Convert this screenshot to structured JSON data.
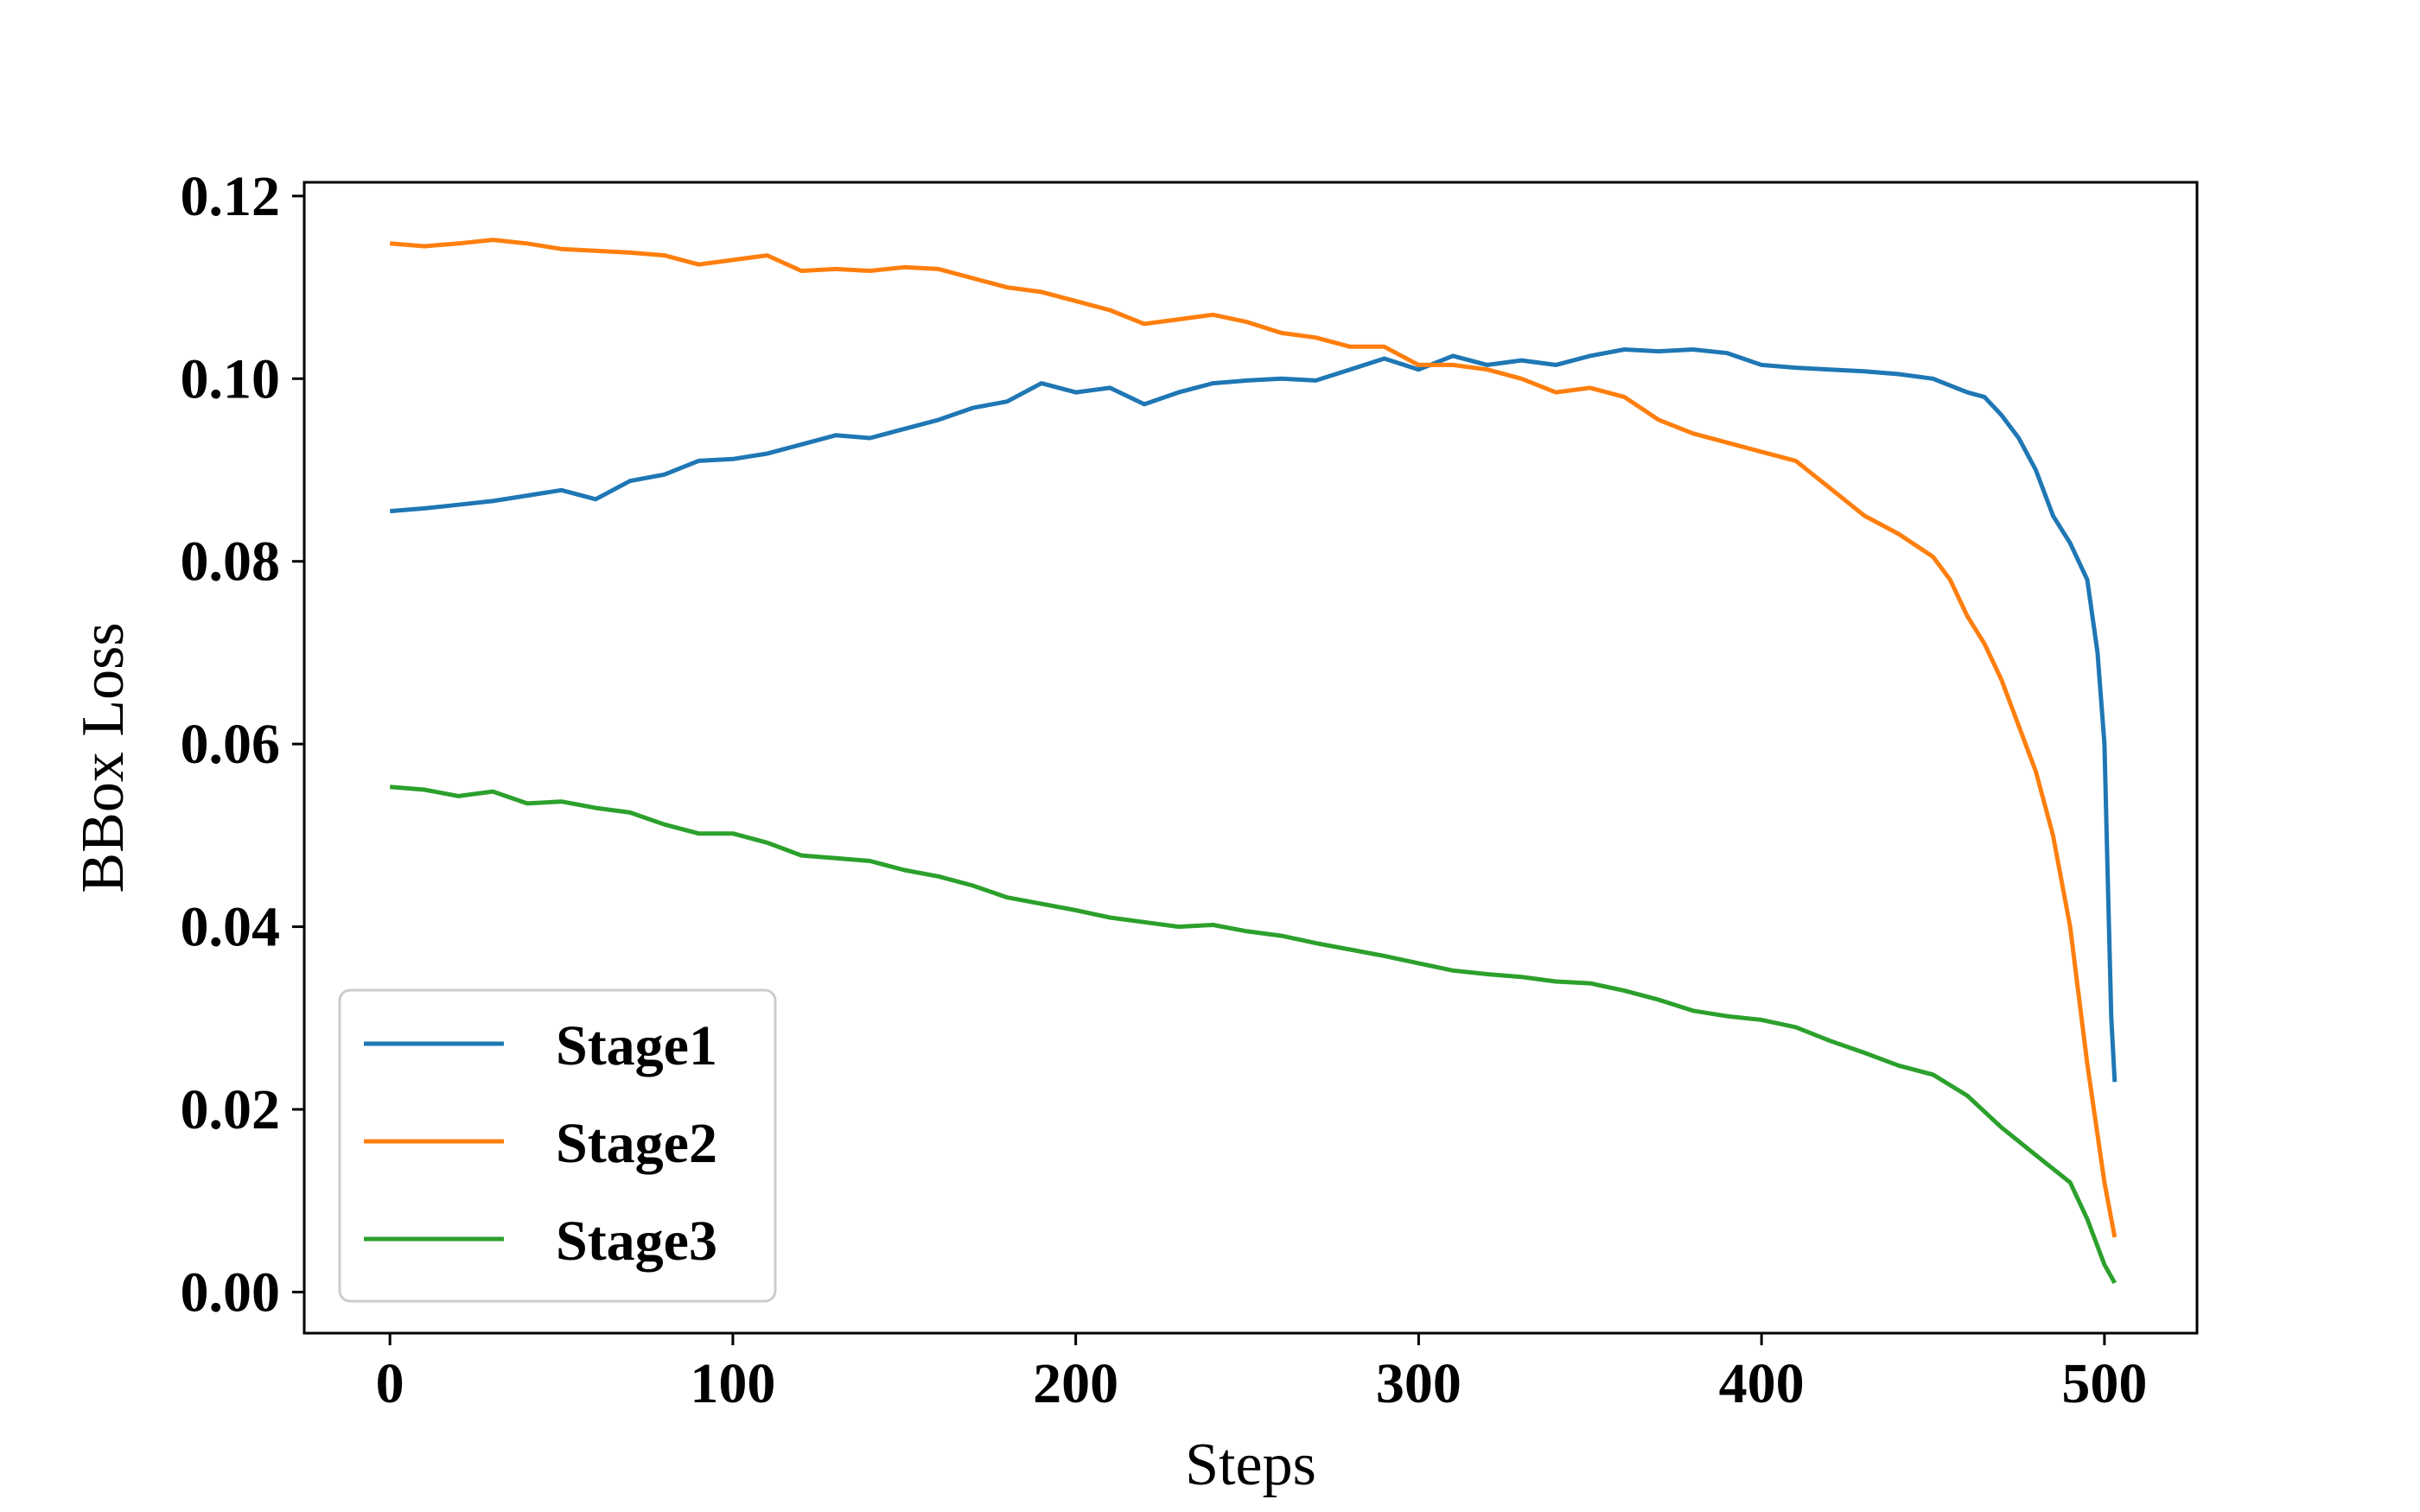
{
  "chart_data": {
    "type": "line",
    "title": "",
    "xlabel": "Steps",
    "ylabel": "BBox Loss",
    "xlim": [
      -25,
      527
    ],
    "ylim": [
      -0.0045,
      0.1215
    ],
    "xticks": [
      0,
      100,
      200,
      300,
      400,
      500
    ],
    "xtick_labels": [
      "0",
      "100",
      "200",
      "300",
      "400",
      "500"
    ],
    "yticks": [
      0.0,
      0.02,
      0.04,
      0.06,
      0.08,
      0.1,
      0.12
    ],
    "ytick_labels": [
      "0.00",
      "0.02",
      "0.04",
      "0.06",
      "0.08",
      "0.10",
      "0.12"
    ],
    "grid": false,
    "legend_position": "lower-left",
    "series": [
      {
        "name": "Stage1",
        "color": "#1f77b4",
        "x": [
          0,
          10,
          20,
          30,
          40,
          50,
          60,
          70,
          80,
          90,
          100,
          110,
          120,
          130,
          140,
          150,
          160,
          170,
          180,
          190,
          200,
          210,
          220,
          230,
          240,
          250,
          260,
          270,
          280,
          290,
          300,
          310,
          320,
          330,
          340,
          350,
          360,
          370,
          380,
          390,
          400,
          410,
          420,
          430,
          440,
          450,
          460,
          465,
          470,
          475,
          480,
          485,
          490,
          495,
          498,
          500,
          501,
          502,
          503
        ],
        "y": [
          0.0855,
          0.0858,
          0.0862,
          0.0866,
          0.0872,
          0.0878,
          0.0868,
          0.0888,
          0.0895,
          0.091,
          0.0912,
          0.0918,
          0.0928,
          0.0938,
          0.0935,
          0.0945,
          0.0955,
          0.0968,
          0.0975,
          0.0995,
          0.0985,
          0.099,
          0.0972,
          0.0985,
          0.0995,
          0.0998,
          0.1,
          0.0998,
          0.101,
          0.1022,
          0.101,
          0.1025,
          0.1015,
          0.102,
          0.1015,
          0.1025,
          0.1032,
          0.103,
          0.1032,
          0.1028,
          0.1015,
          0.1012,
          0.101,
          0.1008,
          0.1005,
          0.1,
          0.0985,
          0.098,
          0.096,
          0.0935,
          0.09,
          0.085,
          0.082,
          0.078,
          0.07,
          0.06,
          0.045,
          0.03,
          0.023
        ]
      },
      {
        "name": "Stage2",
        "color": "#ff7f0e",
        "x": [
          0,
          10,
          20,
          30,
          40,
          50,
          60,
          70,
          80,
          90,
          100,
          110,
          120,
          130,
          140,
          150,
          160,
          170,
          180,
          190,
          200,
          210,
          220,
          230,
          240,
          250,
          260,
          270,
          280,
          290,
          300,
          310,
          320,
          330,
          340,
          350,
          360,
          370,
          380,
          390,
          400,
          410,
          420,
          430,
          440,
          450,
          455,
          460,
          465,
          470,
          475,
          480,
          485,
          490,
          495,
          500,
          503
        ],
        "y": [
          0.1148,
          0.1145,
          0.1148,
          0.1152,
          0.1148,
          0.1142,
          0.114,
          0.1138,
          0.1135,
          0.1125,
          0.113,
          0.1135,
          0.1118,
          0.112,
          0.1118,
          0.1122,
          0.112,
          0.111,
          0.11,
          0.1095,
          0.1085,
          0.1075,
          0.106,
          0.1065,
          0.107,
          0.1062,
          0.105,
          0.1045,
          0.1035,
          0.1035,
          0.1015,
          0.1015,
          0.101,
          0.1,
          0.0985,
          0.099,
          0.098,
          0.0955,
          0.094,
          0.093,
          0.092,
          0.091,
          0.088,
          0.085,
          0.083,
          0.0805,
          0.078,
          0.074,
          0.071,
          0.067,
          0.062,
          0.057,
          0.05,
          0.04,
          0.025,
          0.012,
          0.006
        ]
      },
      {
        "name": "Stage3",
        "color": "#2ca02c",
        "x": [
          0,
          10,
          20,
          30,
          40,
          50,
          60,
          70,
          80,
          90,
          100,
          110,
          120,
          130,
          140,
          150,
          160,
          170,
          180,
          190,
          200,
          210,
          220,
          230,
          240,
          250,
          260,
          270,
          280,
          290,
          300,
          310,
          320,
          330,
          340,
          350,
          360,
          370,
          380,
          390,
          400,
          410,
          420,
          430,
          440,
          450,
          460,
          470,
          480,
          490,
          495,
          500,
          503
        ],
        "y": [
          0.0553,
          0.055,
          0.0543,
          0.0548,
          0.0535,
          0.0537,
          0.053,
          0.0525,
          0.0512,
          0.0502,
          0.0502,
          0.0492,
          0.0478,
          0.0475,
          0.0472,
          0.0462,
          0.0455,
          0.0445,
          0.0432,
          0.0425,
          0.0418,
          0.041,
          0.0405,
          0.04,
          0.0402,
          0.0395,
          0.039,
          0.0382,
          0.0375,
          0.0368,
          0.036,
          0.0352,
          0.0348,
          0.0345,
          0.034,
          0.0338,
          0.033,
          0.032,
          0.0308,
          0.0302,
          0.0298,
          0.029,
          0.0275,
          0.0262,
          0.0248,
          0.0238,
          0.0215,
          0.018,
          0.015,
          0.012,
          0.008,
          0.003,
          0.001
        ]
      }
    ]
  }
}
